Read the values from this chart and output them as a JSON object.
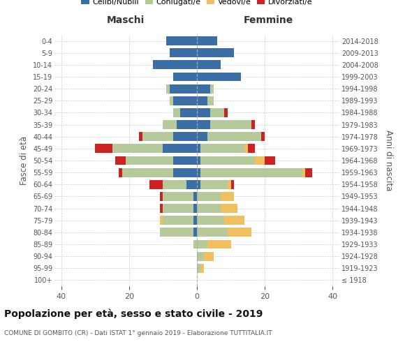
{
  "age_groups": [
    "100+",
    "95-99",
    "90-94",
    "85-89",
    "80-84",
    "75-79",
    "70-74",
    "65-69",
    "60-64",
    "55-59",
    "50-54",
    "45-49",
    "40-44",
    "35-39",
    "30-34",
    "25-29",
    "20-24",
    "15-19",
    "10-14",
    "5-9",
    "0-4"
  ],
  "birth_years": [
    "≤ 1918",
    "1919-1923",
    "1924-1928",
    "1929-1933",
    "1934-1938",
    "1939-1943",
    "1944-1948",
    "1949-1953",
    "1954-1958",
    "1959-1963",
    "1964-1968",
    "1969-1973",
    "1974-1978",
    "1979-1983",
    "1984-1988",
    "1989-1993",
    "1994-1998",
    "1999-2003",
    "2004-2008",
    "2009-2013",
    "2014-2018"
  ],
  "maschi": {
    "celibi": [
      0,
      0,
      0,
      0,
      1,
      1,
      1,
      1,
      3,
      7,
      7,
      10,
      7,
      6,
      5,
      7,
      8,
      7,
      13,
      8,
      9
    ],
    "coniugati": [
      0,
      0,
      0,
      1,
      10,
      9,
      9,
      9,
      7,
      15,
      14,
      15,
      9,
      4,
      2,
      1,
      1,
      0,
      0,
      0,
      0
    ],
    "vedovi": [
      0,
      0,
      0,
      0,
      0,
      1,
      0,
      0,
      0,
      0,
      0,
      0,
      0,
      0,
      0,
      0,
      0,
      0,
      0,
      0,
      0
    ],
    "divorziati": [
      0,
      0,
      0,
      0,
      0,
      0,
      1,
      1,
      4,
      1,
      3,
      5,
      1,
      0,
      0,
      0,
      0,
      0,
      0,
      0,
      0
    ]
  },
  "femmine": {
    "nubili": [
      0,
      0,
      0,
      0,
      0,
      0,
      0,
      0,
      1,
      1,
      1,
      1,
      3,
      4,
      4,
      3,
      4,
      13,
      7,
      11,
      6
    ],
    "coniugate": [
      0,
      1,
      2,
      3,
      9,
      8,
      7,
      7,
      8,
      30,
      16,
      13,
      16,
      12,
      4,
      2,
      1,
      0,
      0,
      0,
      0
    ],
    "vedove": [
      0,
      1,
      3,
      7,
      7,
      6,
      5,
      4,
      1,
      1,
      3,
      1,
      0,
      0,
      0,
      0,
      0,
      0,
      0,
      0,
      0
    ],
    "divorziate": [
      0,
      0,
      0,
      0,
      0,
      0,
      0,
      0,
      1,
      2,
      3,
      2,
      1,
      1,
      1,
      0,
      0,
      0,
      0,
      0,
      0
    ]
  },
  "colors": {
    "celibi": "#3b6ea5",
    "coniugati": "#b5c99a",
    "vedovi": "#f0c060",
    "divorziati": "#cc2222"
  },
  "xlim": 42,
  "title": "Popolazione per età, sesso e stato civile - 2019",
  "subtitle": "COMUNE DI GOMBITO (CR) - Dati ISTAT 1° gennaio 2019 - Elaborazione TUTTITALIA.IT",
  "xlabel_maschi": "Maschi",
  "xlabel_femmine": "Femmine",
  "ylabel": "Fasce di età",
  "ylabel_right": "Anni di nascita"
}
